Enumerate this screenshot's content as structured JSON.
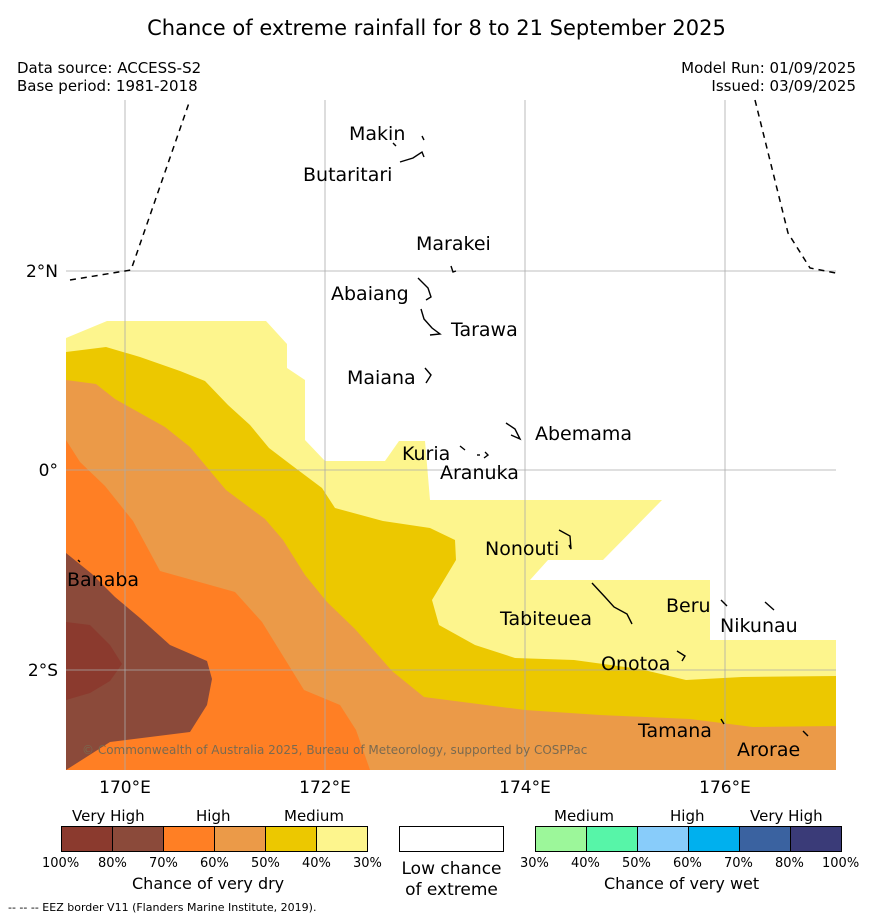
{
  "title": "Chance of extreme rainfall for 8 to 21 September 2025",
  "data_source": "Data source: ACCESS-S2",
  "base_period": "Base period: 1981-2018",
  "model_run": "Model Run: 01/09/2025",
  "issued": "Issued: 03/09/2025",
  "copyright": "© Commonwealth of Australia 2025, Bureau of Meteorology, supported by COSPPac",
  "eez_note": "--  --  -- EEZ border V11 (Flanders Marine Institute, 2019).",
  "axes": {
    "lon_ticks": [
      "170°E",
      "172°E",
      "174°E",
      "176°E"
    ],
    "lat_ticks": [
      "2°N",
      "0°",
      "2°S"
    ]
  },
  "places": [
    "Makin",
    "Butaritari",
    "Marakei",
    "Abaiang",
    "Tarawa",
    "Maiana",
    "Abemama",
    "Kuria",
    "Aranuka",
    "Nonouti",
    "Banaba",
    "Tabiteuea",
    "Beru",
    "Nikunau",
    "Onotoa",
    "Tamana",
    "Arorae"
  ],
  "dry_scale": {
    "title": "Chance of very dry",
    "headers": [
      "Very High",
      "High",
      "Medium"
    ],
    "ticks": [
      "100%",
      "80%",
      "70%",
      "60%",
      "50%",
      "40%",
      "30%"
    ],
    "colors": [
      "#8b3a2e",
      "#8b4a3a",
      "#ff7f24",
      "#eb9a48",
      "#ecc800",
      "#fdf58d"
    ]
  },
  "neutral": {
    "label_line1": "Low chance",
    "label_line2": "of extreme",
    "color": "#ffffff"
  },
  "wet_scale": {
    "title": "Chance of very wet",
    "headers": [
      "Medium",
      "High",
      "Very High"
    ],
    "ticks": [
      "30%",
      "40%",
      "50%",
      "60%",
      "70%",
      "80%",
      "100%"
    ],
    "colors": [
      "#9cf79a",
      "#57f5a8",
      "#88ccfa",
      "#00b0ee",
      "#3a62a0",
      "#3a3b78"
    ]
  }
}
